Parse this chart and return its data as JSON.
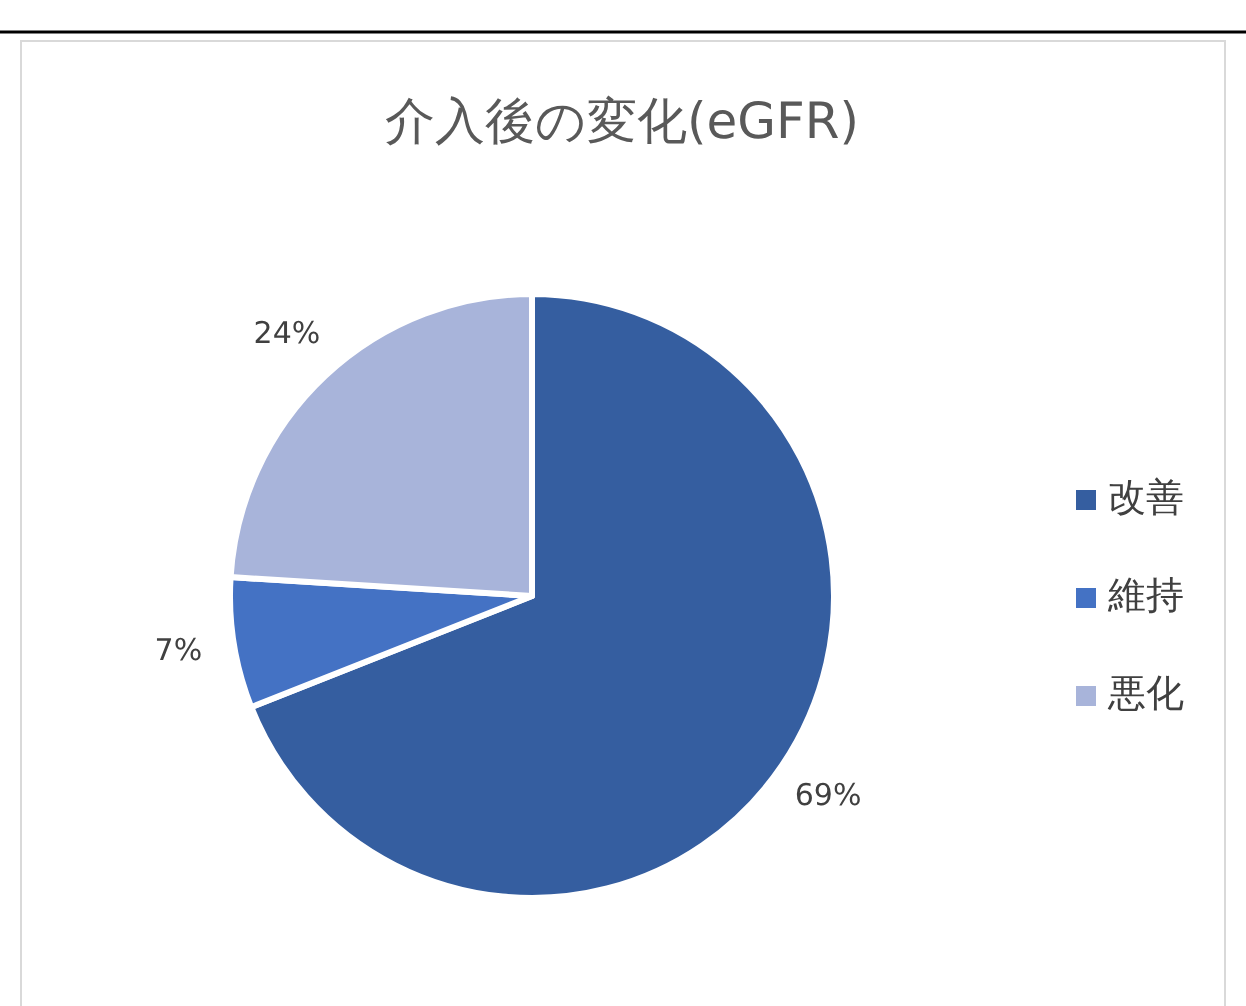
{
  "chart_data": {
    "type": "pie",
    "title": "介入後の変化(eGFR)",
    "categories": [
      "改善",
      "維持",
      "悪化"
    ],
    "values": [
      69,
      7,
      24
    ],
    "colors": [
      "#355ea0",
      "#4472c4",
      "#a8b4da"
    ],
    "value_labels": [
      "69%",
      "7%",
      "24%"
    ],
    "legend": "right"
  }
}
